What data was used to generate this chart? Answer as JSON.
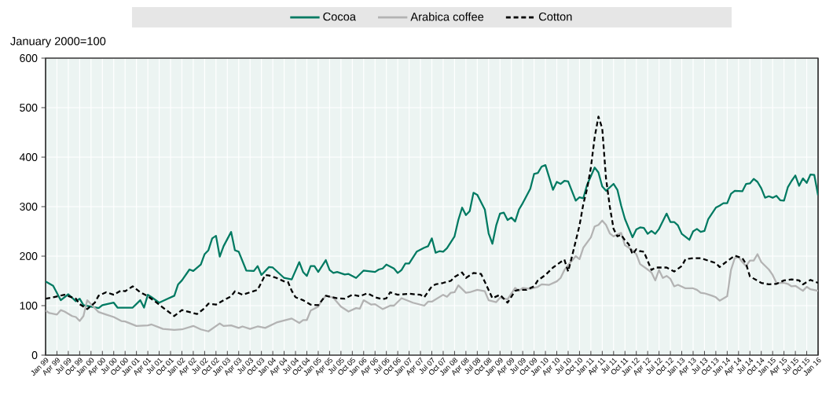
{
  "chart_data": {
    "type": "line",
    "ylabel": "January 2000=100",
    "legend": "top",
    "grid": true,
    "xlim": [
      "1999-01",
      "2016-01"
    ],
    "ylim": [
      0,
      600
    ],
    "yticks": [
      0,
      100,
      200,
      300,
      400,
      500,
      600
    ],
    "xticks": [
      {
        "value": "1999-01",
        "label": "Jan 99"
      },
      {
        "value": "1999-04",
        "label": "Apr 99"
      },
      {
        "value": "1999-07",
        "label": "Jul 99"
      },
      {
        "value": "1999-10",
        "label": "Oct 99"
      },
      {
        "value": "2000-01",
        "label": "Jan 00"
      },
      {
        "value": "2000-04",
        "label": "Apr 00"
      },
      {
        "value": "2000-07",
        "label": "Jul 00"
      },
      {
        "value": "2000-10",
        "label": "Oct 00"
      },
      {
        "value": "2001-01",
        "label": "Jan 01"
      },
      {
        "value": "2001-04",
        "label": "Apr 01"
      },
      {
        "value": "2001-07",
        "label": "Jul 01"
      },
      {
        "value": "2001-10",
        "label": "Oct 01"
      },
      {
        "value": "2002-01",
        "label": "Jan 02"
      },
      {
        "value": "2002-04",
        "label": "Apr 02"
      },
      {
        "value": "2002-07",
        "label": "Jul 02"
      },
      {
        "value": "2002-10",
        "label": "Oct 02"
      },
      {
        "value": "2003-01",
        "label": "Jan 03"
      },
      {
        "value": "2003-04",
        "label": "Apr 03"
      },
      {
        "value": "2003-07",
        "label": "Jul 03"
      },
      {
        "value": "2003-10",
        "label": "Oct 03"
      },
      {
        "value": "2004-01",
        "label": "Jan 04"
      },
      {
        "value": "2004-04",
        "label": "Apr 04"
      },
      {
        "value": "2004-07",
        "label": "Jul 04"
      },
      {
        "value": "2004-10",
        "label": "Oct 04"
      },
      {
        "value": "2005-01",
        "label": "Jan 05"
      },
      {
        "value": "2005-04",
        "label": "Apr 05"
      },
      {
        "value": "2005-07",
        "label": "Jul 05"
      },
      {
        "value": "2005-10",
        "label": "Oct 05"
      },
      {
        "value": "2006-01",
        "label": "Jan 06"
      },
      {
        "value": "2006-04",
        "label": "Apr 06"
      },
      {
        "value": "2006-07",
        "label": "Jul 06"
      },
      {
        "value": "2006-10",
        "label": "Oct 06"
      },
      {
        "value": "2007-01",
        "label": "Jan 07"
      },
      {
        "value": "2007-04",
        "label": "Apr 07"
      },
      {
        "value": "2007-07",
        "label": "Jul 07"
      },
      {
        "value": "2007-10",
        "label": "Oct 07"
      },
      {
        "value": "2008-01",
        "label": "Jan 08"
      },
      {
        "value": "2008-04",
        "label": "Apr 08"
      },
      {
        "value": "2008-07",
        "label": "Jul 08"
      },
      {
        "value": "2008-10",
        "label": "Oct 08"
      },
      {
        "value": "2009-01",
        "label": "Jan 09"
      },
      {
        "value": "2009-04",
        "label": "Apr 09"
      },
      {
        "value": "2009-07",
        "label": "Jul 09"
      },
      {
        "value": "2009-10",
        "label": "Oct 09"
      },
      {
        "value": "2010-01",
        "label": "Jan 10"
      },
      {
        "value": "2010-04",
        "label": "Apr 10"
      },
      {
        "value": "2010-07",
        "label": "Jul 10"
      },
      {
        "value": "2010-10",
        "label": "Oct 10"
      },
      {
        "value": "2011-01",
        "label": "Jan 11"
      },
      {
        "value": "2011-04",
        "label": "Apr 11"
      },
      {
        "value": "2011-07",
        "label": "Jul 11"
      },
      {
        "value": "2011-10",
        "label": "Oct 11"
      },
      {
        "value": "2012-01",
        "label": "Jan 12"
      },
      {
        "value": "2012-04",
        "label": "Apr 12"
      },
      {
        "value": "2012-07",
        "label": "Jul 12"
      },
      {
        "value": "2012-10",
        "label": "Oct 12"
      },
      {
        "value": "2013-01",
        "label": "Jan 13"
      },
      {
        "value": "2013-04",
        "label": "Apr 13"
      },
      {
        "value": "2013-07",
        "label": "Jul 13"
      },
      {
        "value": "2013-10",
        "label": "Oct 13"
      },
      {
        "value": "2014-01",
        "label": "Jan 14"
      },
      {
        "value": "2014-04",
        "label": "Apr 14"
      },
      {
        "value": "2014-07",
        "label": "Jul 14"
      },
      {
        "value": "2014-10",
        "label": "Oct 14"
      },
      {
        "value": "2015-01",
        "label": "Jan 15"
      },
      {
        "value": "2015-04",
        "label": "Apr 15"
      },
      {
        "value": "2015-07",
        "label": "Jul 15"
      },
      {
        "value": "2015-10",
        "label": "Oct 15"
      },
      {
        "value": "2016-01",
        "label": "Jan 16"
      }
    ],
    "series": [
      {
        "name": "Cocoa",
        "color": "#007a62",
        "line_style": "solid",
        "x": [
          "1999-01",
          "1999-03",
          "1999-05",
          "1999-07",
          "1999-09",
          "1999-10",
          "1999-11",
          "2000-03",
          "2000-04",
          "2000-07",
          "2000-08",
          "2000-12",
          "2001-02",
          "2001-03",
          "2001-04",
          "2001-05",
          "2001-07",
          "2001-09",
          "2001-11",
          "2001-12",
          "2002-01",
          "2002-03",
          "2002-04",
          "2002-06",
          "2002-07",
          "2002-08",
          "2002-09",
          "2002-10",
          "2002-11",
          "2002-12",
          "2003-02",
          "2003-03",
          "2003-04",
          "2003-06",
          "2003-08",
          "2003-09",
          "2003-10",
          "2003-12",
          "2004-01",
          "2004-04",
          "2004-06",
          "2004-08",
          "2004-09",
          "2004-10",
          "2004-11",
          "2004-12",
          "2005-01",
          "2005-03",
          "2005-04",
          "2005-05",
          "2005-06",
          "2005-08",
          "2005-09",
          "2005-11",
          "2006-01",
          "2006-04",
          "2006-05",
          "2006-06",
          "2006-07",
          "2006-09",
          "2006-10",
          "2006-11",
          "2006-12",
          "2007-01",
          "2007-03",
          "2007-05",
          "2007-06",
          "2007-07",
          "2007-08",
          "2007-09",
          "2007-10",
          "2007-11",
          "2007-12",
          "2008-01",
          "2008-02",
          "2008-03",
          "2008-04",
          "2008-05",
          "2008-06",
          "2008-07",
          "2008-09",
          "2008-10",
          "2008-11",
          "2008-12",
          "2009-01",
          "2009-02",
          "2009-03",
          "2009-04",
          "2009-05",
          "2009-06",
          "2009-07",
          "2009-09",
          "2009-10",
          "2009-11",
          "2009-12",
          "2010-01",
          "2010-03",
          "2010-04",
          "2010-05",
          "2010-06",
          "2010-07",
          "2010-09",
          "2010-10",
          "2010-11",
          "2010-12",
          "2011-02",
          "2011-03",
          "2011-04",
          "2011-05",
          "2011-07",
          "2011-08",
          "2011-09",
          "2011-10",
          "2011-12",
          "2012-01",
          "2012-02",
          "2012-03",
          "2012-04",
          "2012-05",
          "2012-06",
          "2012-07",
          "2012-09",
          "2012-10",
          "2012-11",
          "2012-12",
          "2013-01",
          "2013-03",
          "2013-04",
          "2013-05",
          "2013-06",
          "2013-07",
          "2013-08",
          "2013-10",
          "2013-11",
          "2013-12",
          "2014-01",
          "2014-02",
          "2014-03",
          "2014-05",
          "2014-06",
          "2014-07",
          "2014-08",
          "2014-09",
          "2014-10",
          "2014-11",
          "2014-12",
          "2015-01",
          "2015-02",
          "2015-03",
          "2015-04",
          "2015-05",
          "2015-06",
          "2015-07",
          "2015-08",
          "2015-09",
          "2015-10",
          "2015-11",
          "2015-12",
          "2016-01"
        ],
        "values": [
          149,
          140,
          111,
          123,
          109,
          114,
          101,
          95,
          101,
          106,
          96,
          96,
          111,
          96,
          122,
          117,
          106,
          113,
          120,
          143,
          151,
          173,
          170,
          183,
          204,
          212,
          236,
          241,
          199,
          220,
          249,
          212,
          209,
          171,
          170,
          180,
          162,
          178,
          177,
          156,
          153,
          188,
          168,
          160,
          180,
          180,
          168,
          192,
          172,
          166,
          168,
          163,
          164,
          156,
          171,
          168,
          173,
          175,
          183,
          175,
          166,
          172,
          185,
          185,
          209,
          217,
          220,
          236,
          207,
          210,
          209,
          216,
          228,
          240,
          273,
          298,
          283,
          291,
          328,
          324,
          294,
          246,
          225,
          262,
          286,
          288,
          273,
          278,
          270,
          294,
          307,
          336,
          366,
          368,
          381,
          384,
          334,
          350,
          346,
          352,
          351,
          312,
          319,
          317,
          344,
          379,
          369,
          341,
          332,
          346,
          334,
          302,
          275,
          238,
          254,
          258,
          257,
          245,
          251,
          245,
          255,
          286,
          269,
          269,
          262,
          245,
          233,
          250,
          255,
          249,
          251,
          275,
          298,
          302,
          307,
          307,
          326,
          332,
          331,
          346,
          347,
          356,
          350,
          337,
          318,
          321,
          318,
          322,
          313,
          312,
          339,
          352,
          363,
          342,
          357,
          348,
          365,
          364,
          323
        ]
      },
      {
        "name": "Arabica coffee",
        "color": "#b3b3b3",
        "line_style": "solid",
        "x": [
          "1999-01",
          "1999-02",
          "1999-04",
          "1999-05",
          "1999-06",
          "1999-08",
          "1999-09",
          "1999-10",
          "1999-11",
          "1999-12",
          "2000-02",
          "2000-03",
          "2000-05",
          "2000-07",
          "2000-09",
          "2000-10",
          "2001-01",
          "2001-04",
          "2001-05",
          "2001-08",
          "2001-11",
          "2002-01",
          "2002-04",
          "2002-06",
          "2002-08",
          "2002-11",
          "2002-12",
          "2003-02",
          "2003-04",
          "2003-05",
          "2003-07",
          "2003-09",
          "2003-11",
          "2004-02",
          "2004-04",
          "2004-06",
          "2004-08",
          "2004-09",
          "2004-10",
          "2004-11",
          "2005-01",
          "2005-02",
          "2005-03",
          "2005-05",
          "2005-07",
          "2005-09",
          "2005-11",
          "2005-12",
          "2006-01",
          "2006-03",
          "2006-04",
          "2006-06",
          "2006-08",
          "2006-09",
          "2006-11",
          "2007-02",
          "2007-05",
          "2007-06",
          "2007-07",
          "2007-10",
          "2007-11",
          "2007-12",
          "2008-01",
          "2008-02",
          "2008-04",
          "2008-05",
          "2008-07",
          "2008-09",
          "2008-10",
          "2008-12",
          "2009-01",
          "2009-03",
          "2009-05",
          "2009-06",
          "2009-07",
          "2009-09",
          "2009-11",
          "2009-12",
          "2010-02",
          "2010-04",
          "2010-05",
          "2010-06",
          "2010-07",
          "2010-08",
          "2010-09",
          "2010-10",
          "2010-11",
          "2011-01",
          "2011-02",
          "2011-03",
          "2011-04",
          "2011-05",
          "2011-06",
          "2011-07",
          "2011-09",
          "2011-10",
          "2011-12",
          "2012-01",
          "2012-02",
          "2012-04",
          "2012-05",
          "2012-06",
          "2012-07",
          "2012-08",
          "2012-09",
          "2012-10",
          "2012-11",
          "2012-12",
          "2013-02",
          "2013-04",
          "2013-05",
          "2013-06",
          "2013-07",
          "2013-09",
          "2013-10",
          "2013-11",
          "2014-01",
          "2014-02",
          "2014-03",
          "2014-04",
          "2014-05",
          "2014-06",
          "2014-07",
          "2014-08",
          "2014-09",
          "2014-10",
          "2014-12",
          "2015-01",
          "2015-02",
          "2015-04",
          "2015-05",
          "2015-06",
          "2015-07",
          "2015-09",
          "2015-10",
          "2015-11",
          "2016-01"
        ],
        "values": [
          90,
          85,
          82,
          91,
          88,
          79,
          77,
          69,
          79,
          111,
          95,
          87,
          82,
          77,
          69,
          68,
          59,
          60,
          62,
          53,
          51,
          52,
          59,
          52,
          48,
          64,
          59,
          60,
          55,
          58,
          53,
          58,
          55,
          66,
          70,
          74,
          65,
          71,
          71,
          90,
          98,
          111,
          120,
          116,
          98,
          88,
          95,
          94,
          111,
          102,
          103,
          93,
          100,
          100,
          115,
          106,
          100,
          108,
          108,
          122,
          118,
          126,
          127,
          141,
          126,
          127,
          132,
          129,
          111,
          107,
          116,
          113,
          136,
          130,
          136,
          134,
          138,
          143,
          142,
          149,
          156,
          172,
          182,
          191,
          200,
          194,
          217,
          238,
          260,
          263,
          272,
          263,
          246,
          240,
          247,
          222,
          212,
          204,
          184,
          173,
          167,
          151,
          172,
          156,
          160,
          154,
          139,
          142,
          135,
          135,
          132,
          126,
          125,
          120,
          117,
          110,
          119,
          172,
          196,
          198,
          188,
          180,
          191,
          191,
          204,
          188,
          173,
          162,
          146,
          146,
          144,
          139,
          140,
          130,
          138,
          133,
          130
        ]
      },
      {
        "name": "Cotton",
        "color": "#000000",
        "line_style": "dashed",
        "x": [
          "1999-01",
          "1999-03",
          "1999-06",
          "1999-09",
          "1999-10",
          "1999-12",
          "2000-02",
          "2000-03",
          "2000-05",
          "2000-07",
          "2000-09",
          "2000-10",
          "2000-12",
          "2001-02",
          "2001-04",
          "2001-06",
          "2001-08",
          "2001-11",
          "2002-01",
          "2002-03",
          "2002-05",
          "2002-07",
          "2002-08",
          "2002-10",
          "2002-12",
          "2003-02",
          "2003-03",
          "2003-05",
          "2003-07",
          "2003-09",
          "2003-11",
          "2003-12",
          "2004-02",
          "2004-04",
          "2004-05",
          "2004-06",
          "2004-07",
          "2004-09",
          "2004-11",
          "2005-01",
          "2005-02",
          "2005-03",
          "2005-06",
          "2005-08",
          "2005-10",
          "2005-12",
          "2006-02",
          "2006-04",
          "2006-06",
          "2006-07",
          "2006-08",
          "2006-10",
          "2007-01",
          "2007-04",
          "2007-05",
          "2007-07",
          "2007-08",
          "2007-10",
          "2007-12",
          "2008-01",
          "2008-03",
          "2008-04",
          "2008-06",
          "2008-08",
          "2008-09",
          "2008-11",
          "2009-01",
          "2009-03",
          "2009-05",
          "2009-06",
          "2009-08",
          "2009-10",
          "2009-11",
          "2010-01",
          "2010-03",
          "2010-05",
          "2010-06",
          "2010-07",
          "2010-08",
          "2010-10",
          "2010-11",
          "2010-12",
          "2011-01",
          "2011-02",
          "2011-03",
          "2011-04",
          "2011-05",
          "2011-06",
          "2011-07",
          "2011-08",
          "2011-09",
          "2011-10",
          "2011-11",
          "2011-12",
          "2012-01",
          "2012-02",
          "2012-03",
          "2012-05",
          "2012-06",
          "2012-09",
          "2012-11",
          "2013-01",
          "2013-02",
          "2013-04",
          "2013-06",
          "2013-08",
          "2013-10",
          "2013-11",
          "2014-01",
          "2014-03",
          "2014-05",
          "2014-06",
          "2014-07",
          "2014-10",
          "2014-12",
          "2015-02",
          "2015-04",
          "2015-06",
          "2015-08",
          "2015-09",
          "2015-11",
          "2016-01"
        ],
        "values": [
          114,
          117,
          122,
          114,
          103,
          93,
          106,
          120,
          127,
          122,
          131,
          129,
          139,
          127,
          119,
          108,
          96,
          79,
          91,
          87,
          83,
          95,
          104,
          102,
          111,
          119,
          129,
          122,
          127,
          132,
          162,
          161,
          156,
          149,
          148,
          130,
          117,
          111,
          102,
          101,
          111,
          120,
          115,
          114,
          122,
          119,
          125,
          117,
          113,
          115,
          127,
          122,
          124,
          122,
          117,
          139,
          143,
          146,
          150,
          158,
          167,
          156,
          166,
          164,
          148,
          115,
          122,
          106,
          130,
          132,
          132,
          139,
          151,
          162,
          177,
          188,
          193,
          169,
          199,
          262,
          305,
          336,
          379,
          440,
          482,
          458,
          357,
          300,
          255,
          240,
          243,
          232,
          224,
          204,
          214,
          210,
          209,
          172,
          177,
          177,
          169,
          180,
          194,
          196,
          196,
          191,
          186,
          178,
          190,
          201,
          196,
          184,
          159,
          146,
          143,
          144,
          151,
          153,
          151,
          143,
          152,
          146
        ]
      }
    ]
  }
}
